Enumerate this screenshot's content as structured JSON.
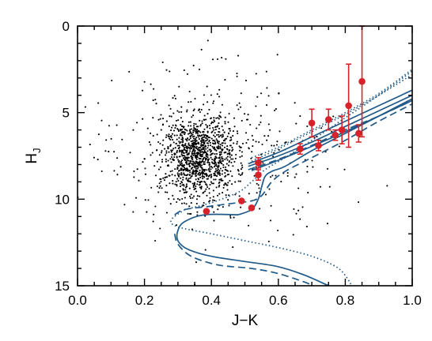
{
  "chart_data": {
    "type": "scatter",
    "title": "",
    "xlabel": "J−K",
    "ylabel": {
      "main": "H",
      "sub": "J"
    },
    "xlim": [
      0.0,
      1.0
    ],
    "ylim": [
      15,
      0
    ],
    "y_inverted": true,
    "grid": false,
    "legend": "none",
    "x_ticks": {
      "labels": [
        "0.0",
        "0.2",
        "0.4",
        "0.6",
        "0.8",
        "1.0"
      ],
      "values": [
        0.0,
        0.2,
        0.4,
        0.6,
        0.8,
        1.0
      ]
    },
    "y_ticks": {
      "labels": [
        "0",
        "5",
        "10",
        "15"
      ],
      "values": [
        0,
        5,
        10,
        15
      ]
    },
    "colors": {
      "field": "#000000",
      "model": "#1f5a8a",
      "candidates": "#d8222a"
    },
    "field_stars": {
      "description_kind": "dense cloud of small black dots",
      "n": 1400,
      "core": {
        "x": 0.36,
        "y": 7.4,
        "sx": 0.055,
        "sy": 1.15
      },
      "spread": {
        "x": 0.42,
        "y": 7.4,
        "sx": 0.16,
        "sy": 2.3
      }
    },
    "candidates": [
      {
        "x": 0.385,
        "y": 10.7,
        "err_lo": 0.0,
        "err_hi": 0.0
      },
      {
        "x": 0.49,
        "y": 10.1,
        "err_lo": 0.0,
        "err_hi": 0.0
      },
      {
        "x": 0.52,
        "y": 10.5,
        "err_lo": 0.0,
        "err_hi": 0.0
      },
      {
        "x": 0.54,
        "y": 8.6,
        "err_lo": 0.3,
        "err_hi": 0.3
      },
      {
        "x": 0.54,
        "y": 7.9,
        "err_lo": 0.3,
        "err_hi": 0.3
      },
      {
        "x": 0.665,
        "y": 7.1,
        "err_lo": 0.3,
        "err_hi": 0.3
      },
      {
        "x": 0.7,
        "y": 5.6,
        "err_lo": 0.8,
        "err_hi": 0.8
      },
      {
        "x": 0.72,
        "y": 6.9,
        "err_lo": 0.3,
        "err_hi": 0.3
      },
      {
        "x": 0.75,
        "y": 5.4,
        "err_lo": 0.6,
        "err_hi": 0.6
      },
      {
        "x": 0.77,
        "y": 6.3,
        "err_lo": 0.3,
        "err_hi": 0.3
      },
      {
        "x": 0.79,
        "y": 6.0,
        "err_lo": 0.8,
        "err_hi": 0.8
      },
      {
        "x": 0.81,
        "y": 4.6,
        "err_lo": 2.4,
        "err_hi": 2.4
      },
      {
        "x": 0.84,
        "y": 6.2,
        "err_lo": 0.5,
        "err_hi": 0.5
      },
      {
        "x": 0.85,
        "y": 3.2,
        "err_lo": 3.2,
        "err_hi": 3.2
      }
    ],
    "model_curves": [
      {
        "style": "solid",
        "points": [
          [
            0.51,
            7.95
          ],
          [
            0.6,
            7.3
          ],
          [
            0.7,
            6.4
          ],
          [
            0.8,
            5.5
          ],
          [
            0.9,
            4.6
          ],
          [
            1.0,
            3.7
          ]
        ]
      },
      {
        "style": "solid",
        "points": [
          [
            0.51,
            8.1
          ],
          [
            0.6,
            7.5
          ],
          [
            0.7,
            6.7
          ],
          [
            0.8,
            5.8
          ],
          [
            0.9,
            4.9
          ],
          [
            1.0,
            4.0
          ]
        ]
      },
      {
        "style": "solid",
        "points": [
          [
            0.52,
            8.35
          ],
          [
            0.6,
            7.75
          ],
          [
            0.7,
            6.95
          ],
          [
            0.8,
            6.1
          ],
          [
            0.9,
            5.2
          ],
          [
            1.0,
            4.3
          ]
        ]
      },
      {
        "style": "solid",
        "points": [
          [
            0.48,
            10.9
          ],
          [
            0.38,
            10.9
          ],
          [
            0.32,
            11.3
          ],
          [
            0.3,
            11.8
          ],
          [
            0.3,
            12.4
          ],
          [
            0.33,
            12.9
          ],
          [
            0.4,
            13.3
          ],
          [
            0.5,
            13.6
          ],
          [
            0.6,
            13.9
          ],
          [
            0.68,
            14.4
          ],
          [
            0.75,
            15.0
          ]
        ]
      },
      {
        "style": "solid",
        "points": [
          [
            0.48,
            10.9
          ],
          [
            0.52,
            10.6
          ],
          [
            0.54,
            10.0
          ],
          [
            0.55,
            9.3
          ],
          [
            0.56,
            8.7
          ],
          [
            0.58,
            8.4
          ],
          [
            0.62,
            8.1
          ],
          [
            0.7,
            7.2
          ],
          [
            0.8,
            6.2
          ],
          [
            0.9,
            5.2
          ],
          [
            1.0,
            4.2
          ]
        ]
      },
      {
        "style": "dashed",
        "points": [
          [
            0.29,
            10.9
          ],
          [
            0.32,
            10.6
          ],
          [
            0.4,
            10.4
          ],
          [
            0.48,
            10.2
          ],
          [
            0.52,
            10.1
          ],
          [
            0.55,
            9.8
          ],
          [
            0.58,
            9.0
          ],
          [
            0.62,
            8.4
          ],
          [
            0.7,
            7.6
          ],
          [
            0.8,
            6.6
          ],
          [
            0.9,
            5.5
          ],
          [
            1.0,
            4.5
          ]
        ]
      },
      {
        "style": "dashed",
        "points": [
          [
            0.29,
            12.0
          ],
          [
            0.3,
            12.6
          ],
          [
            0.34,
            13.3
          ],
          [
            0.42,
            13.8
          ],
          [
            0.52,
            14.0
          ],
          [
            0.6,
            14.3
          ],
          [
            0.68,
            14.8
          ],
          [
            0.7,
            15.0
          ]
        ]
      },
      {
        "style": "dashed",
        "points": [
          [
            0.51,
            8.3
          ],
          [
            0.6,
            7.7
          ],
          [
            0.7,
            6.9
          ],
          [
            0.8,
            6.0
          ],
          [
            0.9,
            5.2
          ],
          [
            1.0,
            4.3
          ]
        ]
      },
      {
        "style": "dotted",
        "points": [
          [
            0.52,
            7.6
          ],
          [
            0.6,
            7.0
          ],
          [
            0.7,
            6.0
          ],
          [
            0.8,
            5.0
          ],
          [
            0.9,
            3.9
          ],
          [
            1.0,
            2.5
          ]
        ]
      },
      {
        "style": "dotted",
        "points": [
          [
            0.52,
            7.8
          ],
          [
            0.6,
            7.1
          ],
          [
            0.7,
            6.1
          ],
          [
            0.8,
            5.1
          ],
          [
            0.9,
            4.0
          ],
          [
            1.0,
            2.8
          ]
        ]
      },
      {
        "style": "dotted",
        "points": [
          [
            0.32,
            10.6
          ],
          [
            0.28,
            11.2
          ],
          [
            0.3,
            11.6
          ],
          [
            0.4,
            12.0
          ],
          [
            0.5,
            12.4
          ],
          [
            0.6,
            12.8
          ],
          [
            0.7,
            13.3
          ],
          [
            0.78,
            14.0
          ],
          [
            0.82,
            15.0
          ]
        ]
      },
      {
        "style": "dotted",
        "points": [
          [
            0.32,
            10.6
          ],
          [
            0.4,
            10.2
          ],
          [
            0.48,
            9.6
          ],
          [
            0.52,
            9.0
          ],
          [
            0.56,
            8.3
          ],
          [
            0.62,
            7.6
          ],
          [
            0.7,
            6.6
          ],
          [
            0.8,
            5.3
          ],
          [
            0.9,
            4.0
          ],
          [
            1.0,
            2.6
          ]
        ]
      }
    ]
  }
}
